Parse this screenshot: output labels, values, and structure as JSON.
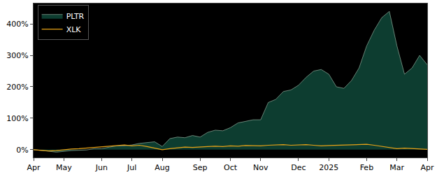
{
  "chart_data": {
    "type": "area",
    "categories": [
      "Apr",
      null,
      null,
      null,
      "May",
      null,
      null,
      null,
      null,
      "Jun",
      null,
      null,
      null,
      "Jul",
      null,
      null,
      null,
      "Aug",
      null,
      null,
      null,
      null,
      "Sep",
      null,
      null,
      null,
      "Oct",
      null,
      null,
      null,
      "Nov",
      null,
      null,
      null,
      null,
      "Dec",
      null,
      null,
      null,
      "2025",
      null,
      null,
      null,
      null,
      "Feb",
      null,
      null,
      null,
      "Mar",
      null,
      null,
      null,
      "Apr"
    ],
    "series": [
      {
        "name": "PLTR",
        "type": "area",
        "color": "#0d3d30",
        "values": [
          0,
          -2,
          -5,
          -8,
          -5,
          -3,
          -2,
          -1,
          3,
          3,
          8,
          12,
          12,
          15,
          20,
          22,
          25,
          10,
          35,
          40,
          38,
          45,
          40,
          55,
          62,
          60,
          70,
          85,
          90,
          95,
          95,
          150,
          160,
          185,
          190,
          205,
          230,
          250,
          255,
          240,
          200,
          195,
          220,
          260,
          330,
          380,
          420,
          440,
          330,
          240,
          260,
          300,
          270
        ]
      },
      {
        "name": "XLK",
        "type": "line",
        "color": "#e8a317",
        "values": [
          0,
          -2,
          -4,
          -3,
          0,
          2,
          3,
          5,
          8,
          10,
          12,
          13,
          15,
          12,
          14,
          10,
          5,
          0,
          3,
          6,
          8,
          7,
          9,
          10,
          11,
          10,
          12,
          11,
          13,
          12,
          12,
          14,
          15,
          16,
          14,
          15,
          16,
          14,
          12,
          13,
          14,
          15,
          16,
          16,
          17,
          14,
          10,
          6,
          3,
          5,
          4,
          2,
          1
        ]
      }
    ],
    "ylim": [
      -25,
      465
    ],
    "yticks": [
      {
        "value": 0,
        "label": "0%"
      },
      {
        "value": 100,
        "label": "100%"
      },
      {
        "value": 200,
        "label": "200%"
      },
      {
        "value": 300,
        "label": "300%"
      },
      {
        "value": 400,
        "label": "400%"
      }
    ],
    "grid": false,
    "legend": "upper left"
  }
}
